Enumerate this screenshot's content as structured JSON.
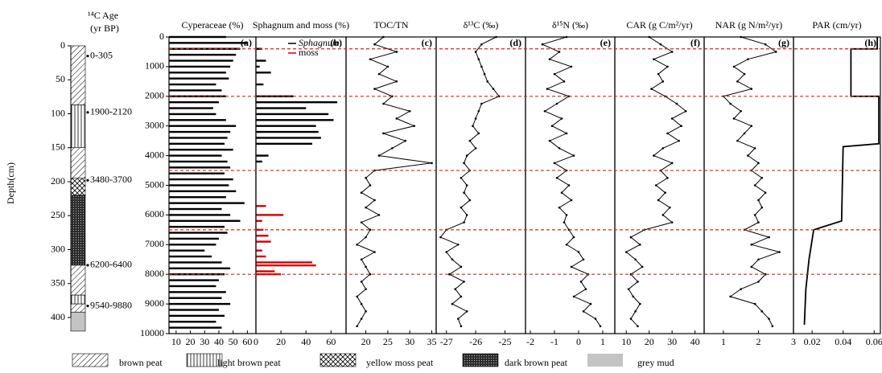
{
  "column": {
    "header_top": "¹⁴C Age",
    "header_bottom": "(yr BP)",
    "ylabel": "Depth(cm)",
    "ylim": [
      0,
      400
    ],
    "yticks": [
      0,
      50,
      100,
      150,
      200,
      250,
      300,
      350,
      400
    ],
    "layers": [
      {
        "top": 0,
        "bottom": 87,
        "pattern": "hatch"
      },
      {
        "top": 87,
        "bottom": 150,
        "pattern": "vertical"
      },
      {
        "top": 150,
        "bottom": 195,
        "pattern": "hatch"
      },
      {
        "top": 195,
        "bottom": 220,
        "pattern": "cross"
      },
      {
        "top": 220,
        "bottom": 323,
        "pattern": "dark"
      },
      {
        "top": 323,
        "bottom": 367,
        "pattern": "hatch"
      },
      {
        "top": 367,
        "bottom": 380,
        "pattern": "vertical"
      },
      {
        "top": 380,
        "bottom": 392,
        "pattern": "hatch"
      },
      {
        "top": 392,
        "bottom": 420,
        "pattern": "grey"
      }
    ],
    "dates": [
      {
        "depth": 15,
        "label": "0-305"
      },
      {
        "depth": 98,
        "label": "1900-2120"
      },
      {
        "depth": 198,
        "label": "3480-3700"
      },
      {
        "depth": 323,
        "label": "6200-6400"
      },
      {
        "depth": 383,
        "label": "9540-9880"
      }
    ]
  },
  "zone_boundaries": [
    400,
    2000,
    4500,
    6500,
    8000
  ],
  "chart_data": [
    {
      "type": "bar",
      "title": "Cyperaceae (%)",
      "label": "(a)",
      "color": "#000000",
      "xlim": [
        5,
        66
      ],
      "xticks": [
        10,
        20,
        30,
        40,
        50,
        60
      ],
      "ylim": [
        0,
        10000
      ],
      "yticks": [
        0,
        1000,
        2000,
        3000,
        4000,
        5000,
        6000,
        7000,
        8000,
        9000,
        10000
      ],
      "series": [
        {
          "ages": [
            0,
            200,
            400,
            600,
            800,
            1000,
            1200,
            1400,
            1600,
            1800,
            2000,
            2200,
            2400,
            2600,
            2800,
            3000,
            3200,
            3400,
            3600,
            3800,
            4000,
            4200,
            4400,
            4600,
            4800,
            5000,
            5200,
            5400,
            5600,
            5800,
            6000,
            6200,
            6400,
            6600,
            6800,
            7000,
            7200,
            7400,
            7600,
            7800,
            8000,
            8200,
            8400,
            8600,
            8800,
            9000,
            9200,
            9400,
            9600,
            9800
          ],
          "values": [
            45,
            60,
            55,
            52,
            50,
            48,
            45,
            47,
            38,
            42,
            45,
            40,
            36,
            38,
            45,
            52,
            48,
            46,
            44,
            50,
            42,
            46,
            48,
            44,
            50,
            47,
            52,
            45,
            58,
            42,
            48,
            55,
            44,
            46,
            40,
            38,
            30,
            35,
            42,
            48,
            44,
            40,
            38,
            45,
            42,
            48,
            40,
            44,
            38,
            42
          ]
        }
      ]
    },
    {
      "type": "bar",
      "title": "Sphagnum and moss (%)",
      "label": "(b)",
      "xlim": [
        0,
        72
      ],
      "xticks": [
        0,
        20,
        40,
        60
      ],
      "ylim": [
        0,
        10000
      ],
      "series": [
        {
          "name": "Sphagnum",
          "color": "#000000",
          "ages": [
            400,
            800,
            1000,
            1200,
            1600,
            2000,
            2200,
            2400,
            2600,
            2800,
            3000,
            3200,
            3400,
            3600,
            4000,
            4200
          ],
          "values": [
            5,
            8,
            3,
            12,
            6,
            30,
            65,
            40,
            58,
            62,
            48,
            50,
            52,
            45,
            10,
            5
          ]
        },
        {
          "name": "moss",
          "color": "#d40000",
          "ages": [
            5700,
            6000,
            6200,
            6500,
            6700,
            6900,
            7200,
            7400,
            7600,
            7700,
            7900,
            8000
          ],
          "values": [
            8,
            22,
            5,
            6,
            10,
            12,
            5,
            8,
            45,
            48,
            15,
            20
          ]
        }
      ]
    },
    {
      "type": "line",
      "title": "TOC/TN",
      "label": "(c)",
      "markers": true,
      "color": "#000000",
      "xlim": [
        15.5,
        36
      ],
      "xticks": [
        20,
        25,
        30,
        35
      ],
      "ylim": [
        0,
        10000
      ],
      "series": [
        {
          "ages": [
            0,
            250,
            500,
            750,
            1000,
            1250,
            1500,
            1750,
            2000,
            2250,
            2500,
            2750,
            3000,
            3250,
            3500,
            3750,
            4000,
            4250,
            4500,
            4750,
            5000,
            5250,
            5500,
            5750,
            6000,
            6250,
            6500,
            6750,
            7000,
            7250,
            7500,
            7750,
            8000,
            8250,
            8500,
            8750,
            9000,
            9250,
            9500,
            9750
          ],
          "values": [
            24,
            22,
            27,
            21,
            25,
            23,
            27,
            22,
            26,
            24,
            30,
            27,
            31,
            24,
            29,
            26,
            23,
            35,
            22,
            20,
            21,
            19,
            22,
            20,
            23,
            19,
            21,
            20,
            18,
            22,
            19,
            20,
            21,
            19,
            20,
            18,
            19,
            20,
            19,
            18
          ]
        }
      ]
    },
    {
      "type": "line",
      "title": "δ¹³C (‰)",
      "label": "(d)",
      "markers": true,
      "color": "#000000",
      "xlim": [
        -27.35,
        -24.3
      ],
      "xticks": [
        -27,
        -26,
        -25
      ],
      "ylim": [
        0,
        10000
      ],
      "series": [
        {
          "ages": [
            0,
            250,
            500,
            750,
            1000,
            1250,
            1500,
            1750,
            2000,
            2250,
            2500,
            2750,
            3000,
            3250,
            3500,
            3750,
            4000,
            4250,
            4500,
            4750,
            5000,
            5250,
            5500,
            5750,
            6000,
            6250,
            6500,
            6750,
            7000,
            7250,
            7500,
            7750,
            8000,
            8250,
            8500,
            8750,
            9000,
            9250,
            9500,
            9750
          ],
          "values": [
            -25.3,
            -25.8,
            -26.0,
            -25.9,
            -25.8,
            -25.7,
            -25.6,
            -25.4,
            -25.2,
            -25.8,
            -25.9,
            -26.0,
            -26.1,
            -25.9,
            -26.2,
            -26.0,
            -26.3,
            -26.4,
            -26.2,
            -26.5,
            -26.3,
            -26.4,
            -26.2,
            -26.5,
            -26.3,
            -26.4,
            -27.0,
            -27.2,
            -26.6,
            -27.0,
            -26.8,
            -26.5,
            -26.9,
            -26.4,
            -26.7,
            -26.5,
            -26.8,
            -26.3,
            -26.6,
            -26.5
          ]
        }
      ]
    },
    {
      "type": "line",
      "title": "δ¹⁵N (‰)",
      "label": "(e)",
      "markers": true,
      "color": "#000000",
      "xlim": [
        -2.2,
        1.5
      ],
      "xticks": [
        -2,
        -1,
        0,
        1
      ],
      "ylim": [
        0,
        10000
      ],
      "series": [
        {
          "ages": [
            0,
            250,
            500,
            750,
            1000,
            1250,
            1500,
            1750,
            2000,
            2250,
            2500,
            2750,
            3000,
            3250,
            3500,
            3750,
            4000,
            4250,
            4500,
            4750,
            5000,
            5250,
            5500,
            5750,
            6000,
            6250,
            6500,
            6750,
            7000,
            7250,
            7500,
            7750,
            8000,
            8250,
            8500,
            8750,
            9000,
            9250,
            9500,
            9750
          ],
          "values": [
            -0.5,
            -1.5,
            -0.8,
            -1.2,
            -0.3,
            -1.0,
            -0.6,
            -1.3,
            -0.4,
            -0.9,
            -1.4,
            -0.7,
            -1.1,
            -0.5,
            -1.2,
            -0.8,
            -0.2,
            -1.0,
            -0.5,
            -0.9,
            -0.4,
            -0.7,
            -0.3,
            -0.8,
            -0.5,
            -0.6,
            -0.4,
            -0.2,
            -0.5,
            0.0,
            0.2,
            -0.3,
            0.4,
            0.1,
            0.3,
            -0.2,
            0.5,
            0.2,
            0.7,
            0.9
          ]
        }
      ]
    },
    {
      "type": "line",
      "title": "CAR (g C/m²/yr)",
      "label": "(f)",
      "markers": true,
      "color": "#000000",
      "xlim": [
        5,
        44
      ],
      "xticks": [
        10,
        20,
        30,
        40
      ],
      "ylim": [
        0,
        10000
      ],
      "series": [
        {
          "ages": [
            0,
            250,
            500,
            750,
            1000,
            1250,
            1500,
            1750,
            2000,
            2250,
            2500,
            2750,
            3000,
            3250,
            3500,
            3750,
            4000,
            4250,
            4500,
            4750,
            5000,
            5250,
            5500,
            5750,
            6000,
            6250,
            6500,
            6750,
            7000,
            7250,
            7500,
            7750,
            8000,
            8250,
            8500,
            8750,
            9000,
            9250,
            9500,
            9750
          ],
          "values": [
            20,
            25,
            30,
            22,
            28,
            24,
            26,
            21,
            27,
            32,
            36,
            30,
            34,
            28,
            33,
            26,
            22,
            30,
            25,
            28,
            23,
            27,
            24,
            29,
            26,
            30,
            18,
            12,
            16,
            10,
            14,
            17,
            12,
            15,
            11,
            13,
            16,
            14,
            12,
            15
          ]
        }
      ]
    },
    {
      "type": "line",
      "title": "NAR (g N/m²/yr)",
      "label": "(g)",
      "markers": true,
      "color": "#000000",
      "xlim": [
        0.45,
        3
      ],
      "xticks": [
        1,
        2,
        3
      ],
      "ylim": [
        0,
        10000
      ],
      "series": [
        {
          "ages": [
            0,
            250,
            500,
            750,
            1000,
            1250,
            1500,
            1750,
            2000,
            2250,
            2500,
            2750,
            3000,
            3250,
            3500,
            3750,
            4000,
            4250,
            4500,
            4750,
            5000,
            5250,
            5500,
            5750,
            6000,
            6250,
            6500,
            6750,
            7000,
            7250,
            7500,
            7750,
            8000,
            8250,
            8500,
            8750,
            9000,
            9250,
            9500,
            9750
          ],
          "values": [
            1.5,
            2.2,
            2.5,
            1.7,
            1.3,
            1.6,
            1.4,
            1.8,
            1.0,
            1.2,
            1.5,
            1.3,
            1.8,
            1.6,
            1.4,
            1.9,
            1.7,
            2.0,
            1.8,
            2.1,
            1.9,
            2.2,
            2.0,
            2.1,
            1.9,
            2.0,
            1.6,
            2.3,
            1.8,
            2.6,
            2.0,
            1.8,
            2.2,
            2.0,
            1.5,
            1.2,
            1.9,
            2.1,
            2.3,
            2.4
          ]
        }
      ]
    },
    {
      "type": "line",
      "title": "PAR (cm/yr)",
      "label": "(h)",
      "markers": false,
      "color": "#000000",
      "xlim": [
        0.008,
        0.064
      ],
      "xticks": [
        0.02,
        0.04,
        0.06
      ],
      "ylim": [
        0,
        10000
      ],
      "series": [
        {
          "ages": [
            0,
            400,
            400,
            2000,
            2000,
            3600,
            3700,
            6200,
            6500,
            7500,
            8500,
            9700
          ],
          "values": [
            0.062,
            0.062,
            0.045,
            0.045,
            0.063,
            0.063,
            0.04,
            0.039,
            0.021,
            0.018,
            0.016,
            0.015
          ]
        }
      ]
    }
  ],
  "legend": [
    {
      "label": "brown peat",
      "pattern": "hatch"
    },
    {
      "label": "light brown peat",
      "pattern": "vertical"
    },
    {
      "label": "yellow moss peat",
      "pattern": "cross"
    },
    {
      "label": "dark brown peat",
      "pattern": "dark"
    },
    {
      "label": "grey mud",
      "pattern": "grey"
    }
  ]
}
